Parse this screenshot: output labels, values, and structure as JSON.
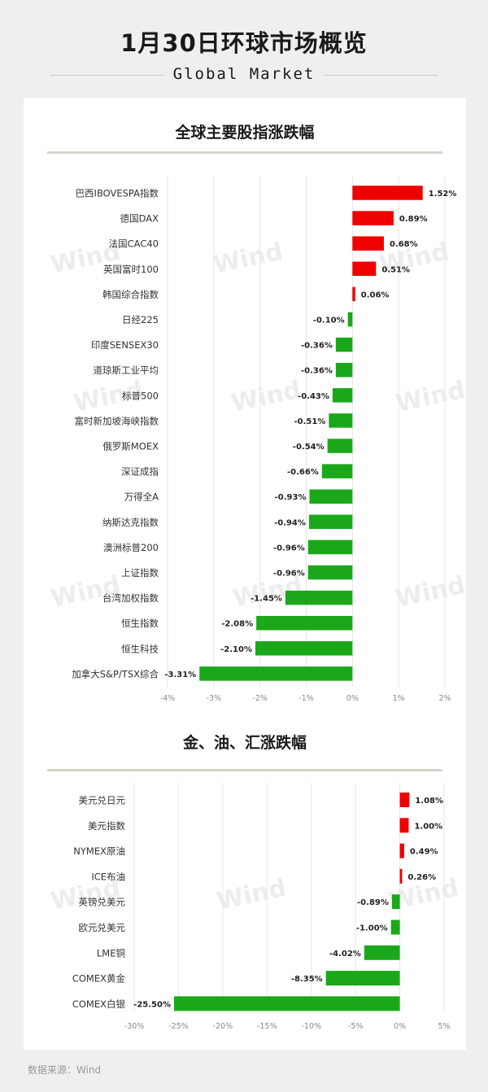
{
  "header": {
    "title": "1月30日环球市场概览",
    "subtitle": "Global Market"
  },
  "colors": {
    "positive": "#f00000",
    "negative": "#1aa81a",
    "grid": "#e6e6e6",
    "watermark": "#ededed"
  },
  "watermark": "Wind",
  "footer": {
    "source": "数据来源：Wind"
  },
  "chart_data": [
    {
      "type": "bar",
      "orientation": "horizontal",
      "title": "全球主要股指涨跌幅",
      "categories": [
        "巴西IBOVESPA指数",
        "德国DAX",
        "法国CAC40",
        "英国富时100",
        "韩国综合指数",
        "日经225",
        "印度SENSEX30",
        "道琼斯工业平均",
        "标普500",
        "富时新加坡海峡指数",
        "俄罗斯MOEX",
        "深证成指",
        "万得全A",
        "纳斯达克指数",
        "澳洲标普200",
        "上证指数",
        "台湾加权指数",
        "恒生指数",
        "恒生科技",
        "加拿大S&P/TSX综合"
      ],
      "values": [
        1.52,
        0.89,
        0.68,
        0.51,
        0.06,
        -0.1,
        -0.36,
        -0.36,
        -0.43,
        -0.51,
        -0.54,
        -0.66,
        -0.93,
        -0.94,
        -0.96,
        -0.96,
        -1.45,
        -2.08,
        -2.1,
        -3.31
      ],
      "labels": [
        "1.52%",
        "0.89%",
        "0.68%",
        "0.51%",
        "0.06%",
        "-0.10%",
        "-0.36%",
        "-0.36%",
        "-0.43%",
        "-0.51%",
        "-0.54%",
        "-0.66%",
        "-0.93%",
        "-0.94%",
        "-0.96%",
        "-0.96%",
        "-1.45%",
        "-2.08%",
        "-2.10%",
        "-3.31%"
      ],
      "xlim": [
        -4,
        2
      ],
      "ticks": [
        -4,
        -3,
        -2,
        -1,
        0,
        1,
        2
      ],
      "tick_labels": [
        "-4%",
        "-3%",
        "-2%",
        "-1%",
        "0%",
        "1%",
        "2%"
      ],
      "grid": true
    },
    {
      "type": "bar",
      "orientation": "horizontal",
      "title": "金、油、汇涨跌幅",
      "categories": [
        "美元兑日元",
        "美元指数",
        "NYMEX原油",
        "ICE布油",
        "英镑兑美元",
        "欧元兑美元",
        "LME铜",
        "COMEX黄金",
        "COMEX白银"
      ],
      "values": [
        1.08,
        1.0,
        0.49,
        0.26,
        -0.89,
        -1.0,
        -4.02,
        -8.35,
        -25.5
      ],
      "labels": [
        "1.08%",
        "1.00%",
        "0.49%",
        "0.26%",
        "-0.89%",
        "-1.00%",
        "-4.02%",
        "-8.35%",
        "-25.50%"
      ],
      "xlim": [
        -30,
        5
      ],
      "ticks": [
        -30,
        -25,
        -20,
        -15,
        -10,
        -5,
        0,
        5
      ],
      "tick_labels": [
        "-30%",
        "-25%",
        "-20%",
        "-15%",
        "-10%",
        "-5%",
        "0%",
        "5%"
      ],
      "grid": true
    }
  ]
}
